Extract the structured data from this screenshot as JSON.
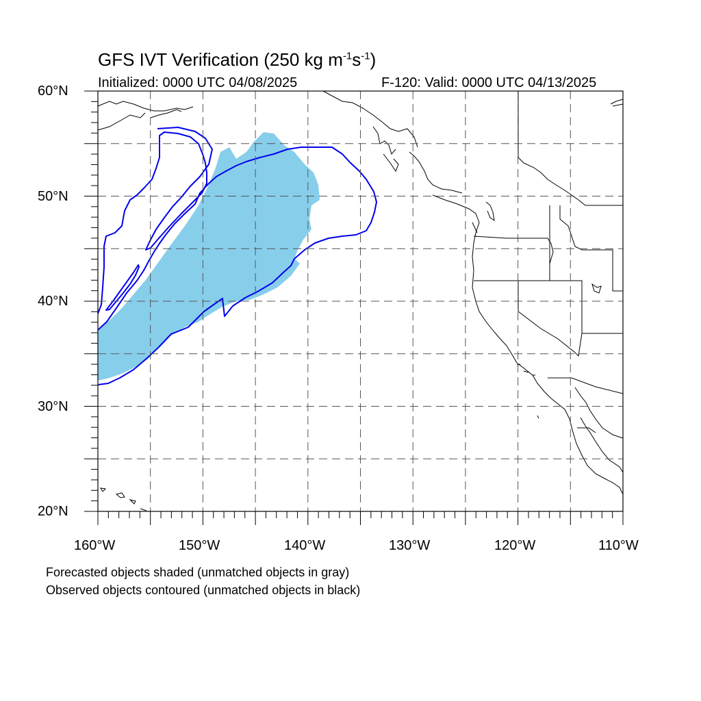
{
  "title": {
    "main": "GFS IVT Verification (250 kg m",
    "exp1": "-1",
    "mid": "s",
    "exp2": "-1",
    "end": ")"
  },
  "initialized": "Initialized: 0000 UTC 04/08/2025",
  "valid": "F-120: Valid: 0000 UTC 04/13/2025",
  "lat_labels": [
    "60°N",
    "50°N",
    "40°N",
    "30°N",
    "20°N"
  ],
  "lon_labels": [
    "160°W",
    "150°W",
    "140°W",
    "130°W",
    "120°W",
    "110°W"
  ],
  "notes": [
    "Forecasted objects shaded (unmatched objects in gray)",
    "Observed objects contoured (unmatched objects in black)"
  ],
  "colors": {
    "forecast_fill": "#87ceeb",
    "observed_contour": "#0000ee",
    "coast": "#000000",
    "grid": "#555555"
  }
}
